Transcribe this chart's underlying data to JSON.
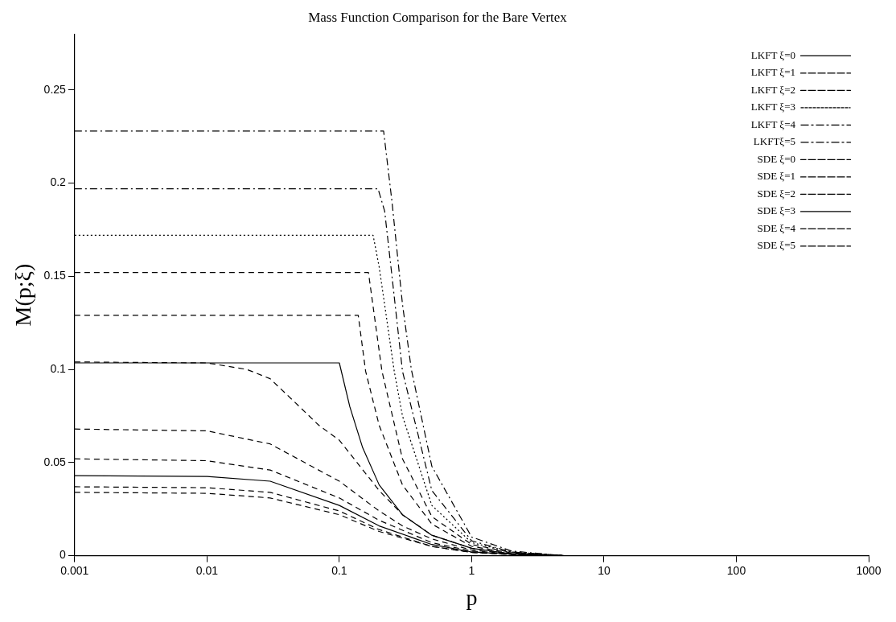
{
  "chart_data": {
    "type": "line",
    "title": "Mass Function Comparison for the Bare Vertex",
    "xlabel": "p",
    "ylabel": "M(p;ξ)",
    "log": "x",
    "xlim": [
      0.001,
      1000
    ],
    "xticks": [
      0.001,
      0.01,
      0.1,
      1,
      10,
      100,
      1000
    ],
    "ylim": [
      0,
      0.28
    ],
    "yticks": [
      0,
      0.05,
      0.1,
      0.15,
      0.2,
      0.25
    ],
    "grid": false,
    "legend": "top right",
    "marker": "none",
    "series": [
      {
        "name": "LKFT ξ=0",
        "color": "#000000",
        "line_style": "solid",
        "x": [
          0.001,
          0.01,
          0.1,
          0.12,
          0.15,
          0.2,
          0.3,
          0.5,
          1,
          2,
          5,
          1000
        ],
        "values": [
          0.1035,
          0.1035,
          0.1035,
          0.08,
          0.058,
          0.038,
          0.022,
          0.011,
          0.004,
          0.001,
          0,
          0
        ]
      },
      {
        "name": "LKFT ξ=1",
        "color": "#000000",
        "line_style": "dashed",
        "x": [
          0.001,
          0.01,
          0.139,
          0.158,
          0.2,
          0.3,
          0.5,
          1,
          2,
          5,
          1000
        ],
        "values": [
          0.129,
          0.129,
          0.129,
          0.099,
          0.07,
          0.038,
          0.017,
          0.005,
          0.0015,
          0,
          0
        ]
      },
      {
        "name": "LKFT ξ=2",
        "color": "#000000",
        "line_style": "dashed",
        "x": [
          0.001,
          0.01,
          0.166,
          0.21,
          0.3,
          0.5,
          1,
          2,
          5,
          1000
        ],
        "values": [
          0.152,
          0.152,
          0.152,
          0.099,
          0.052,
          0.021,
          0.006,
          0.0017,
          0,
          0
        ]
      },
      {
        "name": "LKFT ξ=3",
        "color": "#000000",
        "line_style": "dotted",
        "x": [
          0.001,
          0.01,
          0.18,
          0.2,
          0.26,
          0.3,
          0.5,
          1,
          2,
          5,
          1000
        ],
        "values": [
          0.172,
          0.172,
          0.172,
          0.155,
          0.099,
          0.075,
          0.027,
          0.007,
          0.002,
          0,
          0
        ]
      },
      {
        "name": "LKFT ξ=4",
        "color": "#000000",
        "line_style": "dashdot",
        "x": [
          0.001,
          0.01,
          0.196,
          0.22,
          0.25,
          0.3,
          0.5,
          1,
          2,
          5,
          1000
        ],
        "values": [
          0.197,
          0.197,
          0.197,
          0.185,
          0.15,
          0.099,
          0.035,
          0.008,
          0.002,
          0,
          0
        ]
      },
      {
        "name": "LKFTξ=5",
        "color": "#000000",
        "line_style": "dashdot",
        "x": [
          0.001,
          0.01,
          0.216,
          0.25,
          0.3,
          0.35,
          0.5,
          1,
          2,
          5,
          1000
        ],
        "values": [
          0.228,
          0.228,
          0.228,
          0.19,
          0.135,
          0.1,
          0.048,
          0.01,
          0.0025,
          0,
          0
        ]
      },
      {
        "name": "SDE ξ=0",
        "color": "#000000",
        "line_style": "dashed",
        "x": [
          0.001,
          0.01,
          0.02,
          0.03,
          0.05,
          0.07,
          0.1,
          0.2,
          0.3,
          0.5,
          1,
          2,
          5,
          1000
        ],
        "values": [
          0.104,
          0.1035,
          0.1,
          0.095,
          0.08,
          0.07,
          0.062,
          0.035,
          0.022,
          0.011,
          0.004,
          0.001,
          0,
          0
        ]
      },
      {
        "name": "SDE ξ=1",
        "color": "#000000",
        "line_style": "dashed",
        "x": [
          0.001,
          0.01,
          0.03,
          0.1,
          0.2,
          0.3,
          0.5,
          1,
          2,
          5,
          1000
        ],
        "values": [
          0.068,
          0.067,
          0.06,
          0.04,
          0.024,
          0.016,
          0.009,
          0.003,
          0.001,
          0,
          0
        ]
      },
      {
        "name": "SDE ξ=2",
        "color": "#000000",
        "line_style": "dashed",
        "x": [
          0.001,
          0.01,
          0.03,
          0.1,
          0.2,
          0.5,
          1,
          2,
          5,
          1000
        ],
        "values": [
          0.052,
          0.051,
          0.046,
          0.031,
          0.019,
          0.007,
          0.0025,
          0.001,
          0,
          0
        ]
      },
      {
        "name": "SDE ξ=3",
        "color": "#000000",
        "line_style": "solid",
        "x": [
          0.001,
          0.01,
          0.03,
          0.1,
          0.2,
          0.5,
          1,
          2,
          5,
          1000
        ],
        "values": [
          0.043,
          0.0425,
          0.04,
          0.027,
          0.016,
          0.006,
          0.002,
          0.0008,
          0,
          0
        ]
      },
      {
        "name": "SDE ξ=4",
        "color": "#000000",
        "line_style": "dashed",
        "x": [
          0.001,
          0.01,
          0.03,
          0.1,
          0.2,
          0.5,
          1,
          2,
          5,
          1000
        ],
        "values": [
          0.037,
          0.0365,
          0.034,
          0.024,
          0.014,
          0.005,
          0.0018,
          0.0007,
          0,
          0
        ]
      },
      {
        "name": "SDE ξ=5",
        "color": "#000000",
        "line_style": "dashed",
        "x": [
          0.001,
          0.01,
          0.03,
          0.1,
          0.2,
          0.5,
          1,
          2,
          5,
          1000
        ],
        "values": [
          0.034,
          0.0335,
          0.031,
          0.022,
          0.013,
          0.005,
          0.0017,
          0.0006,
          0,
          0
        ]
      }
    ]
  }
}
